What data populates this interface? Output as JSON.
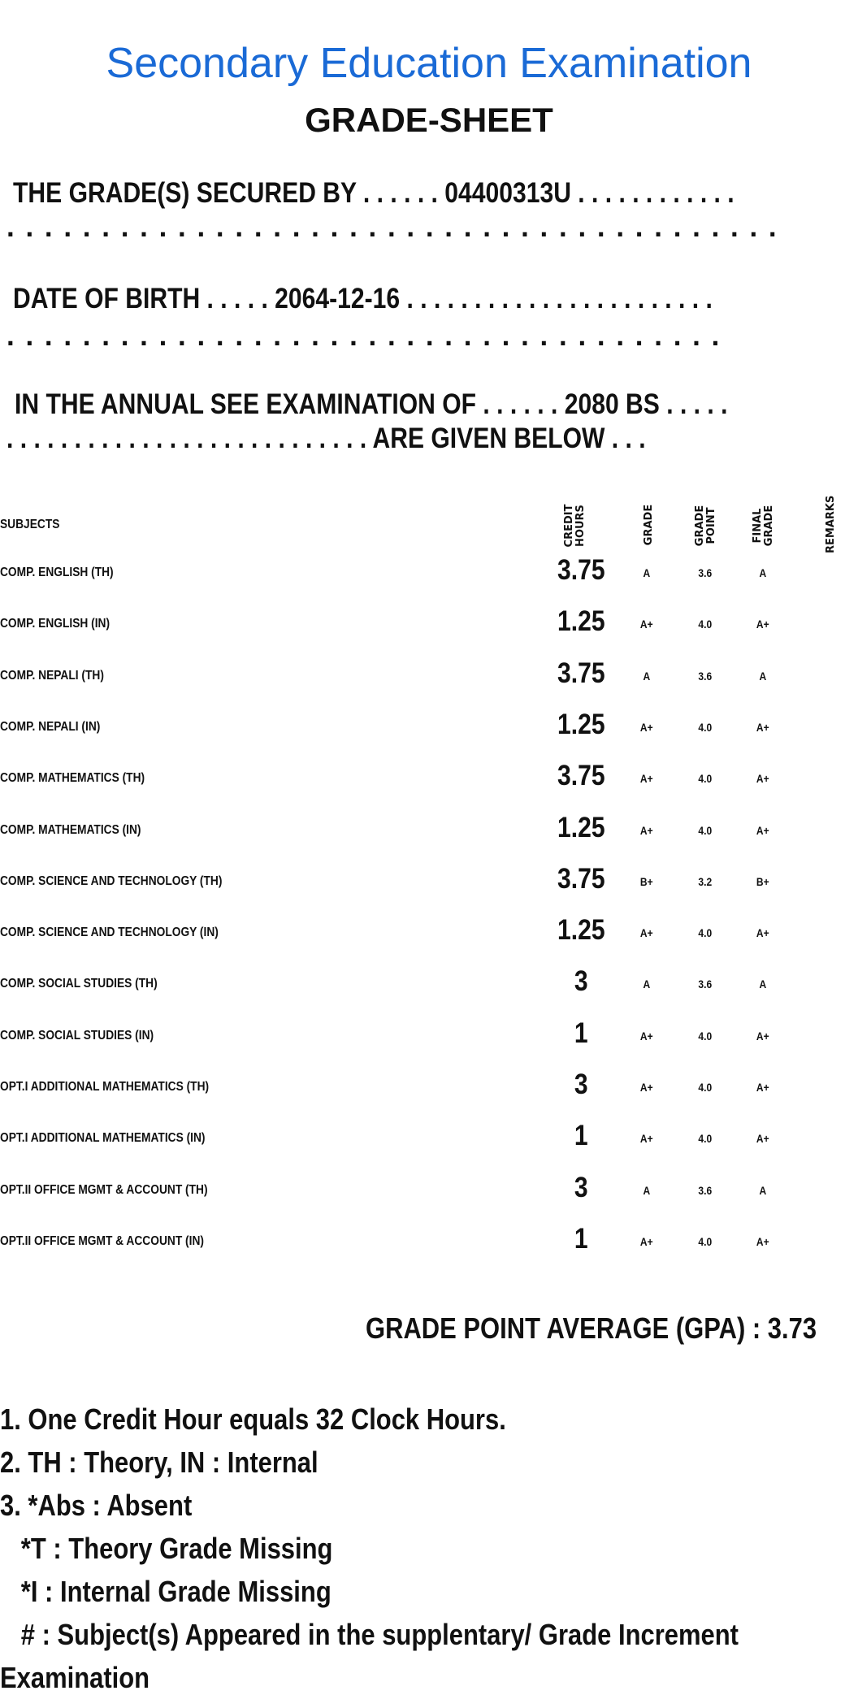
{
  "header": {
    "title": "Secondary Education Examination",
    "subtitle": "GRADE-SHEET",
    "title_color": "#1a6ad6"
  },
  "info": {
    "secured_line": "THE GRADE(S) SECURED BY . . . . . . 04400313U . . . . . . . . . . . .",
    "secured_dots": ". . . . . . . . . . . . . . . . . . . . . . . . . . . . . . . . . . . . . . . . .",
    "dob_line": "DATE OF BIRTH . . . . . 2064-12-16 . . . . . . . . . . . . . . . . . . . . . . .",
    "dob_dots": ". . . . . . . . . . . . . . . . . . . . . . . . . . . . . . . . . . . . . .",
    "exam_line": "IN THE ANNUAL SEE EXAMINATION OF . . . . . . 2080 BS . . . . .",
    "exam_dots": ". . . . . . . . . . . . . . . . . . . . . . . . . . . ARE GIVEN BELOW . . ."
  },
  "table": {
    "headers": {
      "subjects": "SUBJECTS",
      "credit_hours": "CREDIT HOURS",
      "grade": "GRADE",
      "grade_point": "GRADE POINT",
      "final_grade": "FINAL GRADE",
      "remarks": "REMARKS"
    },
    "rows": [
      {
        "subject": "COMP. ENGLISH (TH)",
        "credit": "3.75",
        "grade": "A",
        "point": "3.6",
        "final": "A"
      },
      {
        "subject": "COMP. ENGLISH (IN)",
        "credit": "1.25",
        "grade": "A+",
        "point": "4.0",
        "final": "A+"
      },
      {
        "subject": "COMP. NEPALI (TH)",
        "credit": "3.75",
        "grade": "A",
        "point": "3.6",
        "final": "A"
      },
      {
        "subject": "COMP. NEPALI (IN)",
        "credit": "1.25",
        "grade": "A+",
        "point": "4.0",
        "final": "A+"
      },
      {
        "subject": "COMP. MATHEMATICS (TH)",
        "credit": "3.75",
        "grade": "A+",
        "point": "4.0",
        "final": "A+"
      },
      {
        "subject": "COMP. MATHEMATICS (IN)",
        "credit": "1.25",
        "grade": "A+",
        "point": "4.0",
        "final": "A+"
      },
      {
        "subject": "COMP. SCIENCE AND TECHNOLOGY (TH)",
        "credit": "3.75",
        "grade": "B+",
        "point": "3.2",
        "final": "B+"
      },
      {
        "subject": "COMP. SCIENCE AND TECHNOLOGY (IN)",
        "credit": "1.25",
        "grade": "A+",
        "point": "4.0",
        "final": "A+"
      },
      {
        "subject": "COMP. SOCIAL STUDIES (TH)",
        "credit": "3",
        "grade": "A",
        "point": "3.6",
        "final": "A"
      },
      {
        "subject": "COMP. SOCIAL STUDIES (IN)",
        "credit": "1",
        "grade": "A+",
        "point": "4.0",
        "final": "A+"
      },
      {
        "subject": "OPT.I ADDITIONAL MATHEMATICS (TH)",
        "credit": "3",
        "grade": "A+",
        "point": "4.0",
        "final": "A+"
      },
      {
        "subject": "OPT.I ADDITIONAL MATHEMATICS (IN)",
        "credit": "1",
        "grade": "A+",
        "point": "4.0",
        "final": "A+"
      },
      {
        "subject": "OPT.II OFFICE MGMT & ACCOUNT (TH)",
        "credit": "3",
        "grade": "A",
        "point": "3.6",
        "final": "A"
      },
      {
        "subject": "OPT.II OFFICE MGMT & ACCOUNT (IN)",
        "credit": "1",
        "grade": "A+",
        "point": "4.0",
        "final": "A+"
      }
    ]
  },
  "gpa": "GRADE POINT AVERAGE (GPA) : 3.73",
  "notes": [
    "1. One Credit Hour equals 32 Clock Hours.",
    "2. TH : Theory, IN : Internal",
    "3. *Abs : Absent",
    "   *T : Theory Grade Missing",
    "   *I : Internal Grade Missing",
    "   # : Subject(s) Appeared in the supplentary/ Grade Increment",
    "Examination"
  ]
}
